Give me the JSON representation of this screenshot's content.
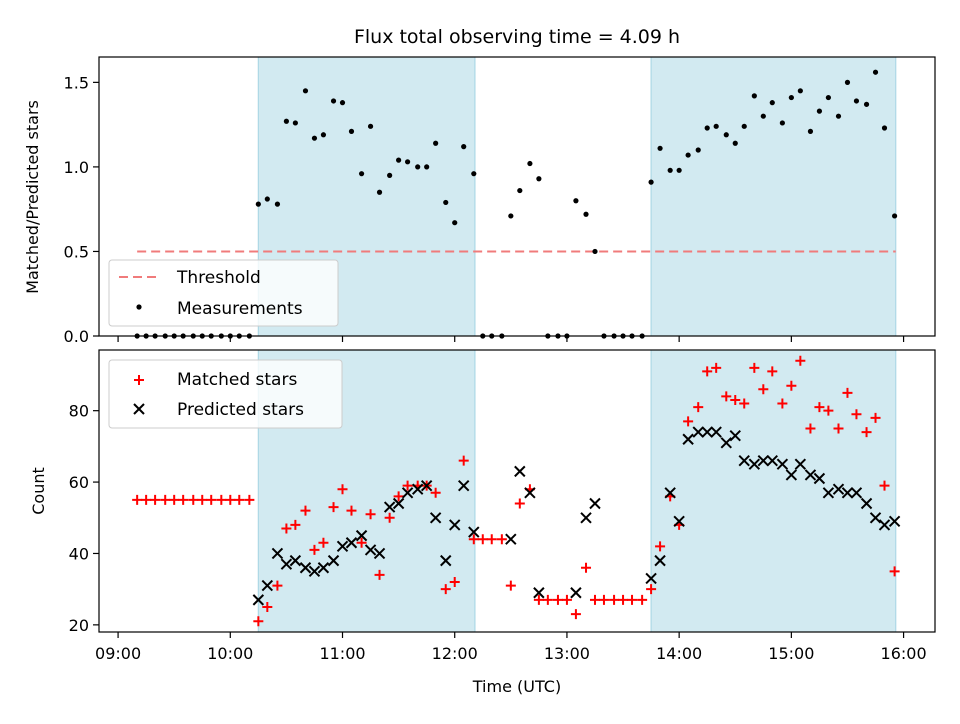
{
  "figure": {
    "title": "Flux total observing time = 4.09 h",
    "xlabel": "Time (UTC)",
    "xticks": [
      "09:00",
      "10:00",
      "11:00",
      "12:00",
      "13:00",
      "14:00",
      "15:00",
      "16:00"
    ]
  },
  "colors": {
    "shade": "#add8e6",
    "threshold": "#f07b7b",
    "matched": "#ff0000",
    "predicted": "#000000",
    "measurement": "#000000"
  },
  "chart_data": [
    {
      "type": "scatter",
      "ylabel": "Matched/Predicted stars",
      "xlim": [
        8.83,
        16.28
      ],
      "ylim": [
        0,
        1.65
      ],
      "yticks": [
        "0.0",
        "0.5",
        "1.0",
        "1.5"
      ],
      "shaded_intervals": [
        [
          10.25,
          12.18
        ],
        [
          13.75,
          15.93
        ]
      ],
      "legend": {
        "position": "lower-left",
        "entries": [
          "Threshold",
          "Measurements"
        ]
      },
      "threshold": {
        "name": "Threshold",
        "x": [
          9.17,
          15.93
        ],
        "y": 0.5
      },
      "measurements": {
        "name": "Measurements",
        "x": [
          9.17,
          9.25,
          9.33,
          9.42,
          9.5,
          9.58,
          9.67,
          9.75,
          9.83,
          9.92,
          10.0,
          10.08,
          10.17,
          10.25,
          10.33,
          10.42,
          10.5,
          10.58,
          10.67,
          10.75,
          10.83,
          10.92,
          11.0,
          11.08,
          11.17,
          11.25,
          11.33,
          11.42,
          11.5,
          11.58,
          11.67,
          11.75,
          11.83,
          11.92,
          12.0,
          12.08,
          12.17,
          12.25,
          12.33,
          12.42,
          12.5,
          12.58,
          12.67,
          12.75,
          12.83,
          12.92,
          13.0,
          13.08,
          13.17,
          13.25,
          13.33,
          13.42,
          13.5,
          13.58,
          13.67,
          13.75,
          13.83,
          13.92,
          14.0,
          14.08,
          14.17,
          14.25,
          14.33,
          14.42,
          14.5,
          14.58,
          14.67,
          14.75,
          14.83,
          14.92,
          15.0,
          15.08,
          15.17,
          15.25,
          15.33,
          15.42,
          15.5,
          15.58,
          15.67,
          15.75,
          15.83,
          15.92
        ],
        "y": [
          0,
          0,
          0,
          0,
          0,
          0,
          0,
          0,
          0,
          0,
          0,
          0,
          0,
          0.78,
          0.81,
          0.78,
          1.27,
          1.26,
          1.45,
          1.17,
          1.19,
          1.39,
          1.38,
          1.21,
          0.96,
          1.24,
          0.85,
          0.95,
          1.04,
          1.03,
          1.0,
          1.0,
          1.14,
          0.79,
          0.67,
          1.12,
          0.96,
          0,
          0,
          0,
          0.71,
          0.86,
          1.02,
          0.93,
          0,
          0,
          0,
          0.8,
          0.72,
          0.5,
          0,
          0,
          0,
          0,
          0,
          0.91,
          1.11,
          0.98,
          0.98,
          1.07,
          1.1,
          1.23,
          1.24,
          1.19,
          1.14,
          1.24,
          1.42,
          1.3,
          1.38,
          1.26,
          1.41,
          1.45,
          1.21,
          1.33,
          1.41,
          1.3,
          1.5,
          1.39,
          1.37,
          1.56,
          1.23,
          0.71
        ]
      }
    },
    {
      "type": "scatter",
      "ylabel": "Count",
      "xlim": [
        8.83,
        16.28
      ],
      "ylim": [
        18,
        97
      ],
      "yticks": [
        "20",
        "40",
        "60",
        "80"
      ],
      "shaded_intervals": [
        [
          10.25,
          12.18
        ],
        [
          13.75,
          15.93
        ]
      ],
      "legend": {
        "position": "upper-left",
        "entries": [
          "Matched stars",
          "Predicted stars"
        ]
      },
      "matched": {
        "name": "Matched stars",
        "x": [
          9.17,
          9.25,
          9.33,
          9.42,
          9.5,
          9.58,
          9.67,
          9.75,
          9.83,
          9.92,
          10.0,
          10.08,
          10.17,
          10.25,
          10.33,
          10.42,
          10.5,
          10.58,
          10.67,
          10.75,
          10.83,
          10.92,
          11.0,
          11.08,
          11.17,
          11.25,
          11.33,
          11.42,
          11.5,
          11.58,
          11.67,
          11.75,
          11.83,
          11.92,
          12.0,
          12.08,
          12.17,
          12.25,
          12.33,
          12.42,
          12.5,
          12.58,
          12.67,
          12.75,
          12.83,
          12.92,
          13.0,
          13.08,
          13.17,
          13.25,
          13.33,
          13.42,
          13.5,
          13.58,
          13.67,
          13.75,
          13.83,
          13.92,
          14.0,
          14.08,
          14.17,
          14.25,
          14.33,
          14.42,
          14.5,
          14.58,
          14.67,
          14.75,
          14.83,
          14.92,
          15.0,
          15.08,
          15.17,
          15.25,
          15.33,
          15.42,
          15.5,
          15.58,
          15.67,
          15.75,
          15.83,
          15.92
        ],
        "y": [
          55,
          55,
          55,
          55,
          55,
          55,
          55,
          55,
          55,
          55,
          55,
          55,
          55,
          21,
          25,
          31,
          47,
          48,
          52,
          41,
          43,
          53,
          58,
          52,
          43,
          51,
          34,
          50,
          56,
          59,
          59,
          59,
          57,
          30,
          32,
          66,
          44,
          44,
          44,
          44,
          31,
          54,
          58,
          27,
          27,
          27,
          27,
          23,
          36,
          27,
          27,
          27,
          27,
          27,
          27,
          30,
          42,
          56,
          48,
          77,
          81,
          91,
          92,
          84,
          83,
          82,
          92,
          86,
          91,
          82,
          87,
          94,
          75,
          81,
          80,
          75,
          85,
          79,
          74,
          78,
          59,
          35
        ]
      },
      "predicted": {
        "name": "Predicted stars",
        "x": [
          10.25,
          10.33,
          10.42,
          10.5,
          10.58,
          10.67,
          10.75,
          10.83,
          10.92,
          11.0,
          11.08,
          11.17,
          11.25,
          11.33,
          11.42,
          11.5,
          11.58,
          11.67,
          11.75,
          11.83,
          11.92,
          12.0,
          12.08,
          12.17,
          12.5,
          12.58,
          12.67,
          12.75,
          13.08,
          13.17,
          13.25,
          13.75,
          13.83,
          13.92,
          14.0,
          14.08,
          14.17,
          14.25,
          14.33,
          14.42,
          14.5,
          14.58,
          14.67,
          14.75,
          14.83,
          14.92,
          15.0,
          15.08,
          15.17,
          15.25,
          15.33,
          15.42,
          15.5,
          15.58,
          15.67,
          15.75,
          15.83,
          15.92
        ],
        "y": [
          27,
          31,
          40,
          37,
          38,
          36,
          35,
          36,
          38,
          42,
          43,
          45,
          41,
          40,
          53,
          54,
          57,
          58,
          59,
          50,
          38,
          48,
          59,
          46,
          44,
          63,
          57,
          29,
          29,
          50,
          54,
          33,
          38,
          57,
          49,
          72,
          74,
          74,
          74,
          71,
          73,
          66,
          65,
          66,
          66,
          65,
          62,
          65,
          62,
          61,
          57,
          58,
          57,
          57,
          54,
          50,
          48,
          49
        ]
      }
    }
  ]
}
